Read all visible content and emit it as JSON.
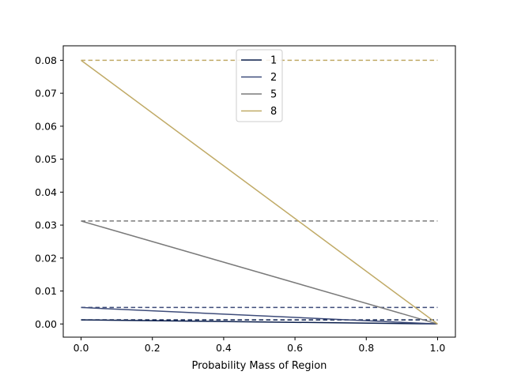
{
  "chart_data": {
    "type": "line",
    "title": "",
    "xlabel": "Probability Mass of Region",
    "ylabel": "",
    "xlim": [
      -0.05,
      1.05
    ],
    "ylim": [
      -0.004,
      0.0844
    ],
    "xticks": [
      0.0,
      0.2,
      0.4,
      0.6,
      0.8,
      1.0
    ],
    "xtick_labels": [
      "0.0",
      "0.2",
      "0.4",
      "0.6",
      "0.8",
      "1.0"
    ],
    "yticks": [
      0.0,
      0.01,
      0.02,
      0.03,
      0.04,
      0.05,
      0.06,
      0.07,
      0.08
    ],
    "ytick_labels": [
      "0.00",
      "0.01",
      "0.02",
      "0.03",
      "0.04",
      "0.05",
      "0.06",
      "0.07",
      "0.08"
    ],
    "grid": false,
    "legend_position": "top-center",
    "series": [
      {
        "name": "1",
        "color": "#0b1f4d",
        "x": [
          0.0,
          1.0
        ],
        "y": [
          0.00125,
          0.0
        ],
        "reference_level": 0.00125
      },
      {
        "name": "2",
        "color": "#3e4c7a",
        "x": [
          0.0,
          1.0
        ],
        "y": [
          0.005,
          0.0
        ],
        "reference_level": 0.005
      },
      {
        "name": "5",
        "color": "#7a7a7a",
        "x": [
          0.0,
          1.0
        ],
        "y": [
          0.03125,
          0.0
        ],
        "reference_level": 0.03125
      },
      {
        "name": "8",
        "color": "#c0aa66",
        "x": [
          0.0,
          1.0
        ],
        "y": [
          0.08,
          0.0
        ],
        "reference_level": 0.08
      }
    ]
  }
}
